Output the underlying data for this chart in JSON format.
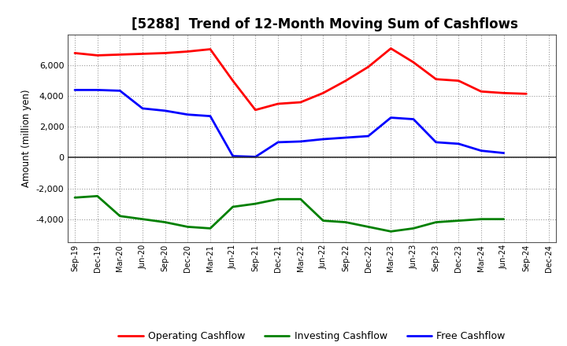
{
  "title": "[5288]  Trend of 12-Month Moving Sum of Cashflows",
  "ylabel": "Amount (million yen)",
  "xlabels": [
    "Sep-19",
    "Dec-19",
    "Mar-20",
    "Jun-20",
    "Sep-20",
    "Dec-20",
    "Mar-21",
    "Jun-21",
    "Sep-21",
    "Dec-21",
    "Mar-22",
    "Jun-22",
    "Sep-22",
    "Dec-22",
    "Mar-23",
    "Jun-23",
    "Sep-23",
    "Dec-23",
    "Mar-24",
    "Jun-24",
    "Sep-24",
    "Dec-24"
  ],
  "operating_cashflow": [
    6800,
    6650,
    6700,
    6750,
    6800,
    6900,
    7050,
    5000,
    3100,
    3500,
    3600,
    4200,
    5000,
    5900,
    7100,
    6200,
    5100,
    5000,
    4300,
    4200,
    4150,
    null
  ],
  "investing_cashflow": [
    -2600,
    -2500,
    -3800,
    -4000,
    -4200,
    -4500,
    -4600,
    -3200,
    -3000,
    -2700,
    -2700,
    -4100,
    -4200,
    -4500,
    -4800,
    -4600,
    -4200,
    -4100,
    -4000,
    -4000,
    null,
    null
  ],
  "free_cashflow": [
    4400,
    4400,
    4350,
    3200,
    3050,
    2800,
    2700,
    100,
    50,
    1000,
    1050,
    1200,
    1300,
    1400,
    2600,
    2500,
    1000,
    900,
    450,
    300,
    null,
    null
  ],
  "ylim": [
    -5500,
    8000
  ],
  "yticks": [
    -4000,
    -2000,
    0,
    2000,
    4000,
    6000
  ],
  "operating_color": "#ff0000",
  "investing_color": "#008000",
  "free_color": "#0000ff",
  "background_color": "#ffffff",
  "grid_color": "#999999",
  "title_fontsize": 12,
  "legend_labels": [
    "Operating Cashflow",
    "Investing Cashflow",
    "Free Cashflow"
  ]
}
